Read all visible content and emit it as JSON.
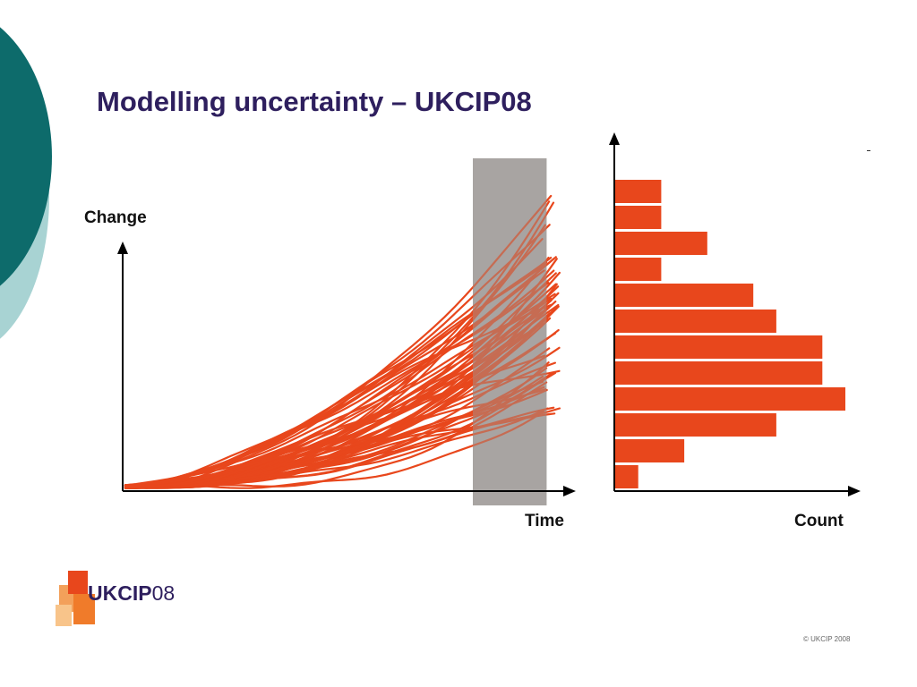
{
  "slide": {
    "title": "Modelling uncertainty – UKCIP08",
    "logo_brand": "UKCIP",
    "logo_suffix": "08",
    "copyright": "© UKCIP 2008"
  },
  "colors": {
    "title": "#2e1f5e",
    "lines": "#e8471c",
    "bars": "#e8471c",
    "band": "#9e9a97",
    "deco_dark": "#0d6b6b",
    "deco_light": "#a8d3d3"
  },
  "chart_data": [
    {
      "type": "line",
      "xlabel": "Time",
      "ylabel": "Change",
      "note": "ensemble of projection lines, all starting near zero and fanning out over time; shaded band marks the final time window",
      "series_count": 60,
      "end_value_range": [
        0.2,
        1.0
      ],
      "shaded_window_fraction": [
        0.8,
        0.96
      ]
    },
    {
      "type": "bar",
      "orientation": "horizontal",
      "xlabel": "Count",
      "bins": 12,
      "values": [
        1,
        3,
        7,
        10,
        9,
        9,
        7,
        6,
        2,
        4,
        2,
        2
      ]
    }
  ]
}
